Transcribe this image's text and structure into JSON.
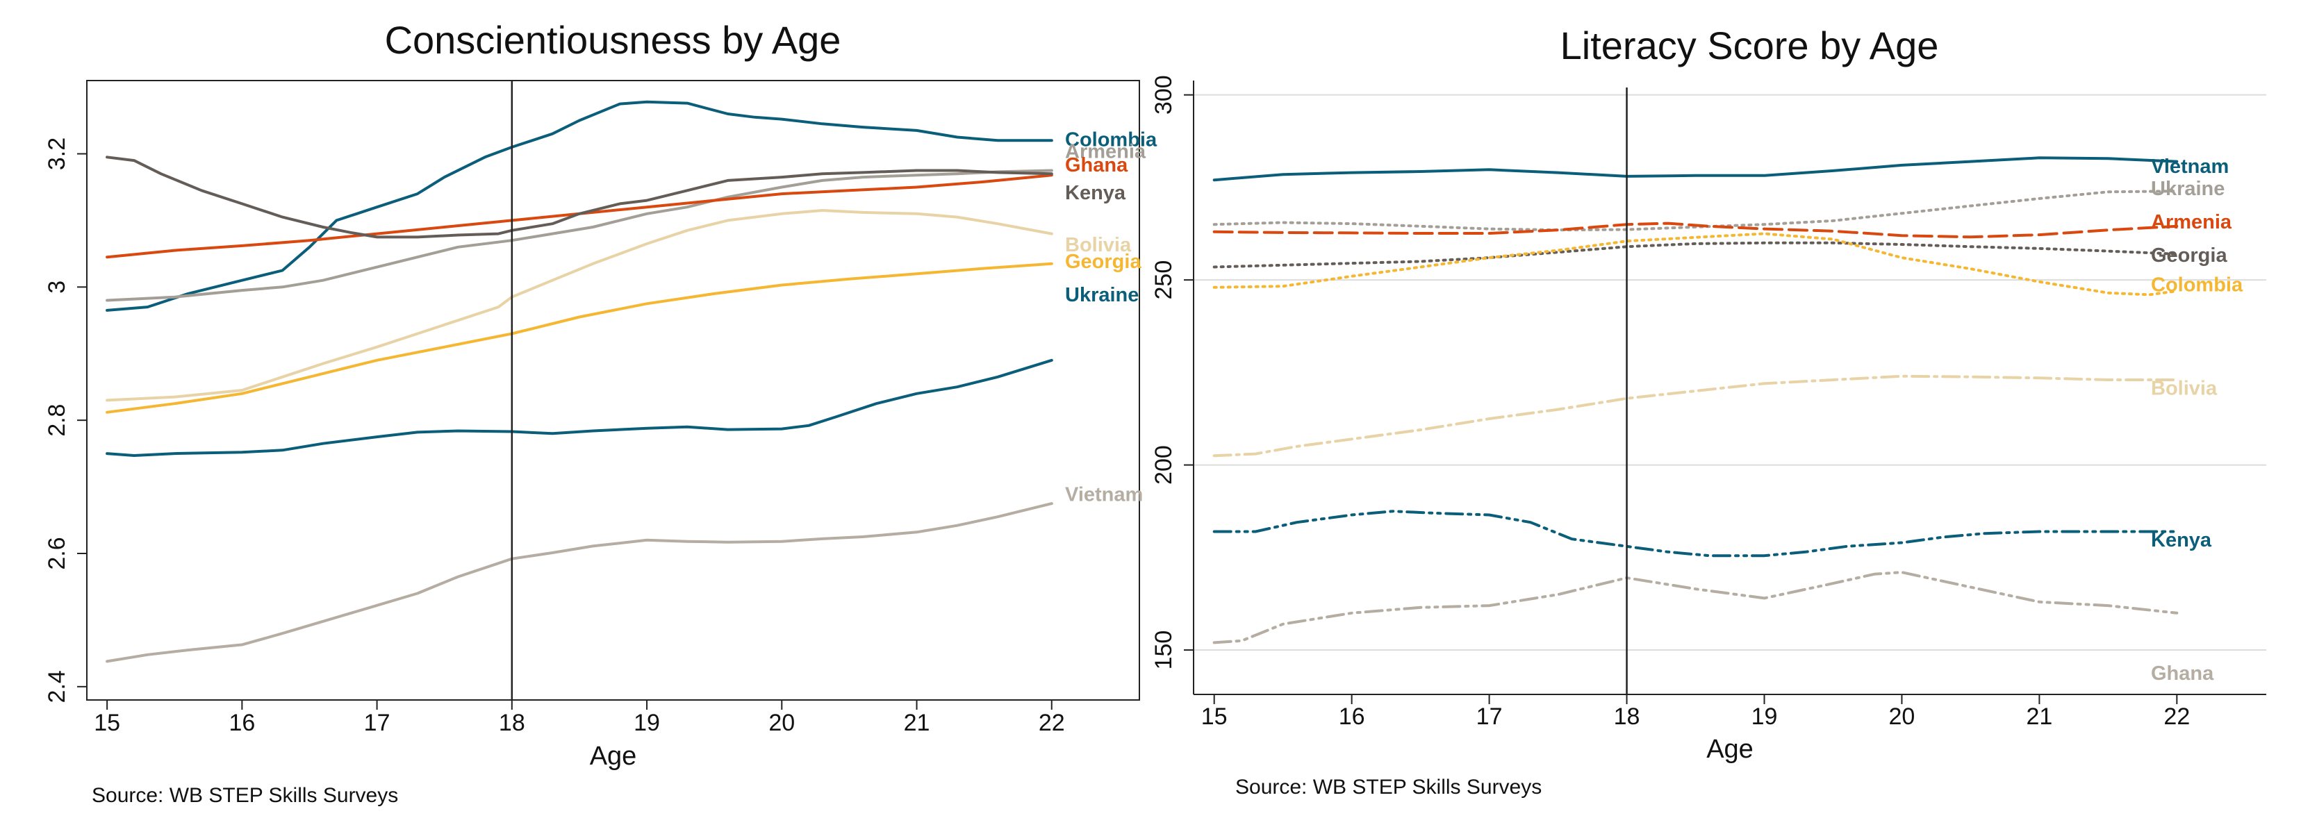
{
  "chart_data": [
    {
      "type": "line",
      "title": "Conscientiousness by Age",
      "xlabel": "Age",
      "ylabel": "",
      "xlim": [
        14.85,
        22.65
      ],
      "ylim": [
        2.38,
        3.31
      ],
      "xticks": [
        15,
        16,
        17,
        18,
        19,
        20,
        21,
        22
      ],
      "yticks": [
        2.4,
        2.6,
        2.8,
        3.0,
        3.2
      ],
      "ytick_labels": [
        "2.4",
        "2.6",
        "2.8",
        "3",
        "3.2"
      ],
      "grid": false,
      "legend": "inline labels at right end of lines",
      "reference_line_x": 18,
      "source": "Source: WB STEP Skills Surveys",
      "series": [
        {
          "name": "Colombia",
          "color": "#0b5e7a",
          "dash": "solid",
          "label_y": 3.223,
          "x": [
            15,
            15.3,
            15.6,
            16,
            16.3,
            16.5,
            16.7,
            17,
            17.3,
            17.5,
            17.8,
            18,
            18.3,
            18.5,
            18.8,
            19,
            19.3,
            19.6,
            19.8,
            20,
            20.3,
            20.6,
            21,
            21.3,
            21.6,
            21.8,
            22
          ],
          "y": [
            2.965,
            2.97,
            2.99,
            3.01,
            3.025,
            3.06,
            3.1,
            3.12,
            3.14,
            3.165,
            3.195,
            3.21,
            3.23,
            3.25,
            3.275,
            3.278,
            3.276,
            3.26,
            3.255,
            3.252,
            3.245,
            3.24,
            3.235,
            3.225,
            3.22,
            3.22,
            3.22
          ]
        },
        {
          "name": "Armenia",
          "color": "#a39e96",
          "dash": "solid",
          "label_y": 3.205,
          "x": [
            15,
            15.5,
            16,
            16.3,
            16.6,
            17,
            17.3,
            17.6,
            18,
            18.3,
            18.6,
            19,
            19.3,
            19.6,
            20,
            20.3,
            20.6,
            21,
            21.3,
            21.6,
            22
          ],
          "y": [
            2.98,
            2.985,
            2.995,
            3.0,
            3.01,
            3.03,
            3.045,
            3.06,
            3.07,
            3.08,
            3.09,
            3.11,
            3.12,
            3.135,
            3.15,
            3.16,
            3.165,
            3.168,
            3.17,
            3.173,
            3.175
          ]
        },
        {
          "name": "Ghana",
          "color": "#d9480f",
          "dash": "solid",
          "label_y": 3.185,
          "x": [
            15,
            15.5,
            16,
            16.5,
            17,
            17.5,
            18,
            18.5,
            19,
            19.5,
            20,
            20.5,
            21,
            21.5,
            22
          ],
          "y": [
            3.045,
            3.055,
            3.062,
            3.07,
            3.08,
            3.09,
            3.1,
            3.11,
            3.12,
            3.13,
            3.14,
            3.145,
            3.15,
            3.158,
            3.168
          ]
        },
        {
          "name": "Kenya",
          "color": "#645c57",
          "dash": "solid",
          "label_y": 3.143,
          "x": [
            15,
            15.2,
            15.4,
            15.7,
            16,
            16.3,
            16.6,
            16.8,
            17,
            17.3,
            17.6,
            17.9,
            18,
            18.3,
            18.5,
            18.8,
            19,
            19.3,
            19.6,
            20,
            20.3,
            20.6,
            21,
            21.3,
            21.6,
            22
          ],
          "y": [
            3.195,
            3.19,
            3.17,
            3.145,
            3.125,
            3.105,
            3.09,
            3.082,
            3.075,
            3.075,
            3.078,
            3.08,
            3.085,
            3.095,
            3.11,
            3.125,
            3.13,
            3.145,
            3.16,
            3.165,
            3.17,
            3.172,
            3.175,
            3.175,
            3.172,
            3.17
          ]
        },
        {
          "name": "Bolivia",
          "color": "#e8d3a6",
          "dash": "solid",
          "label_y": 3.065,
          "x": [
            15,
            15.5,
            16,
            16.3,
            16.6,
            17,
            17.3,
            17.6,
            17.9,
            18,
            18.3,
            18.6,
            19,
            19.3,
            19.6,
            20,
            20.3,
            20.6,
            21,
            21.3,
            21.6,
            22
          ],
          "y": [
            2.83,
            2.835,
            2.845,
            2.865,
            2.885,
            2.91,
            2.93,
            2.95,
            2.97,
            2.985,
            3.01,
            3.035,
            3.065,
            3.085,
            3.1,
            3.11,
            3.115,
            3.112,
            3.11,
            3.105,
            3.095,
            3.08
          ]
        },
        {
          "name": "Georgia",
          "color": "#f5b731",
          "dash": "solid",
          "label_y": 3.04,
          "x": [
            15,
            15.5,
            16,
            16.5,
            17,
            17.5,
            18,
            18.5,
            19,
            19.5,
            20,
            20.5,
            21,
            21.5,
            22
          ],
          "y": [
            2.812,
            2.825,
            2.84,
            2.865,
            2.89,
            2.91,
            2.93,
            2.955,
            2.975,
            2.99,
            3.003,
            3.012,
            3.02,
            3.028,
            3.035
          ]
        },
        {
          "name": "Ukraine",
          "color": "#0b5e7a",
          "dash": "solid",
          "label_y": 2.99,
          "x": [
            15,
            15.2,
            15.5,
            16,
            16.3,
            16.6,
            17,
            17.3,
            17.6,
            18,
            18.3,
            18.6,
            19,
            19.3,
            19.6,
            20,
            20.2,
            20.4,
            20.7,
            21,
            21.3,
            21.6,
            22
          ],
          "y": [
            2.75,
            2.747,
            2.75,
            2.752,
            2.755,
            2.765,
            2.775,
            2.782,
            2.784,
            2.783,
            2.78,
            2.784,
            2.788,
            2.79,
            2.786,
            2.787,
            2.792,
            2.805,
            2.825,
            2.84,
            2.85,
            2.865,
            2.89
          ]
        },
        {
          "name": "Vietnam",
          "color": "#b5aca2",
          "dash": "solid",
          "label_y": 2.69,
          "x": [
            15,
            15.3,
            15.6,
            16,
            16.3,
            16.6,
            17,
            17.3,
            17.6,
            18,
            18.3,
            18.6,
            19,
            19.3,
            19.6,
            20,
            20.3,
            20.6,
            21,
            21.3,
            21.6,
            22
          ],
          "y": [
            2.438,
            2.448,
            2.455,
            2.463,
            2.48,
            2.498,
            2.522,
            2.54,
            2.565,
            2.592,
            2.601,
            2.611,
            2.62,
            2.618,
            2.617,
            2.618,
            2.622,
            2.625,
            2.632,
            2.642,
            2.655,
            2.675
          ]
        }
      ]
    },
    {
      "type": "line",
      "title": "Literacy Score by Age",
      "xlabel": "Age",
      "ylabel": "",
      "xlim": [
        14.85,
        22.65
      ],
      "ylim": [
        138,
        302
      ],
      "xticks": [
        15,
        16,
        17,
        18,
        19,
        20,
        21,
        22
      ],
      "yticks": [
        150,
        200,
        250,
        300
      ],
      "ytick_labels": [
        "150",
        "200",
        "250",
        "300"
      ],
      "grid": true,
      "legend": "inline labels at right end of lines",
      "reference_line_x": 18,
      "source": "Source: WB STEP Skills Surveys",
      "series": [
        {
          "name": "Vietnam",
          "color": "#0b5e7a",
          "dash": "solid",
          "label_y": 281,
          "x": [
            15,
            15.5,
            16,
            16.5,
            17,
            17.5,
            18,
            18.5,
            19,
            19.5,
            20,
            20.5,
            21,
            21.5,
            22
          ],
          "y": [
            277,
            278.5,
            279,
            279.3,
            279.8,
            279,
            278,
            278.2,
            278.2,
            279.5,
            281,
            282,
            283,
            282.8,
            282
          ]
        },
        {
          "name": "Ukraine",
          "color": "#a39e96",
          "dash": "dot",
          "label_y": 275,
          "x": [
            15,
            15.5,
            16,
            16.5,
            17,
            17.5,
            18,
            18.5,
            19,
            19.5,
            20,
            20.5,
            21,
            21.5,
            22
          ],
          "y": [
            265,
            265.5,
            265.2,
            264.5,
            263.8,
            263.5,
            263.6,
            264.3,
            265,
            266,
            268,
            270,
            272,
            273.8,
            274
          ]
        },
        {
          "name": "Armenia",
          "color": "#d9480f",
          "dash": "longdash",
          "label_y": 266,
          "x": [
            15,
            15.5,
            16,
            16.5,
            17,
            17.5,
            18,
            18.3,
            18.6,
            19,
            19.5,
            20,
            20.5,
            21,
            21.5,
            22
          ],
          "y": [
            263,
            262.8,
            262.7,
            262.6,
            262.6,
            263.5,
            265,
            265.3,
            264.5,
            263.8,
            263.2,
            262,
            261.6,
            262.2,
            263.5,
            264.5
          ]
        },
        {
          "name": "Georgia",
          "color": "#645c57",
          "dash": "dot",
          "label_y": 257,
          "x": [
            15,
            15.5,
            16,
            16.5,
            17,
            17.5,
            18,
            18.5,
            19,
            19.5,
            20,
            20.5,
            21,
            21.5,
            22
          ],
          "y": [
            253.5,
            254,
            254.5,
            255,
            256,
            257.5,
            259,
            259.8,
            260,
            260,
            259.6,
            259,
            258.5,
            257.8,
            257
          ]
        },
        {
          "name": "Colombia",
          "color": "#f5b731",
          "dash": "dot",
          "label_y": 249,
          "x": [
            15,
            15.5,
            16,
            16.5,
            17,
            17.5,
            18,
            18.5,
            19,
            19.5,
            20,
            20.5,
            21,
            21.5,
            21.8,
            22
          ],
          "y": [
            248,
            248.3,
            251,
            253.5,
            256,
            258,
            260.5,
            261.5,
            262.5,
            261,
            256,
            253,
            249.5,
            246.5,
            246,
            247
          ]
        },
        {
          "name": "Bolivia",
          "color": "#e8d3a6",
          "dash": "dashdot",
          "label_y": 221,
          "x": [
            15,
            15.3,
            15.6,
            16,
            16.5,
            17,
            17.5,
            18,
            18.5,
            19,
            19.5,
            20,
            20.5,
            21,
            21.5,
            22
          ],
          "y": [
            202.5,
            203,
            205,
            207,
            209.5,
            212.5,
            215,
            218,
            220,
            222,
            223,
            224,
            223.8,
            223.5,
            223,
            223
          ]
        },
        {
          "name": "Kenya",
          "color": "#0b5e7a",
          "dash": "dashdotdot",
          "label_y": 180,
          "x": [
            15,
            15.3,
            15.6,
            16,
            16.3,
            16.6,
            17,
            17.3,
            17.6,
            18,
            18.3,
            18.6,
            19,
            19.3,
            19.6,
            20,
            20.3,
            20.6,
            21,
            21.5,
            22
          ],
          "y": [
            182,
            182,
            184.5,
            186.5,
            187.5,
            187,
            186.5,
            184.5,
            180,
            178,
            176.5,
            175.5,
            175.5,
            176.5,
            178,
            179,
            180.5,
            181.5,
            182,
            182,
            182
          ]
        },
        {
          "name": "Ghana",
          "color": "#b5aca2",
          "dash": "dashdotdot",
          "label_y": 144,
          "x": [
            15,
            15.2,
            15.5,
            16,
            16.5,
            17,
            17.5,
            18,
            18.5,
            19,
            19.5,
            19.8,
            20,
            20.5,
            21,
            21.5,
            22
          ],
          "y": [
            152,
            152.5,
            157,
            160,
            161.5,
            162,
            165,
            169.5,
            166.5,
            164,
            168,
            170.5,
            171,
            167,
            163,
            162,
            160
          ]
        }
      ]
    }
  ]
}
